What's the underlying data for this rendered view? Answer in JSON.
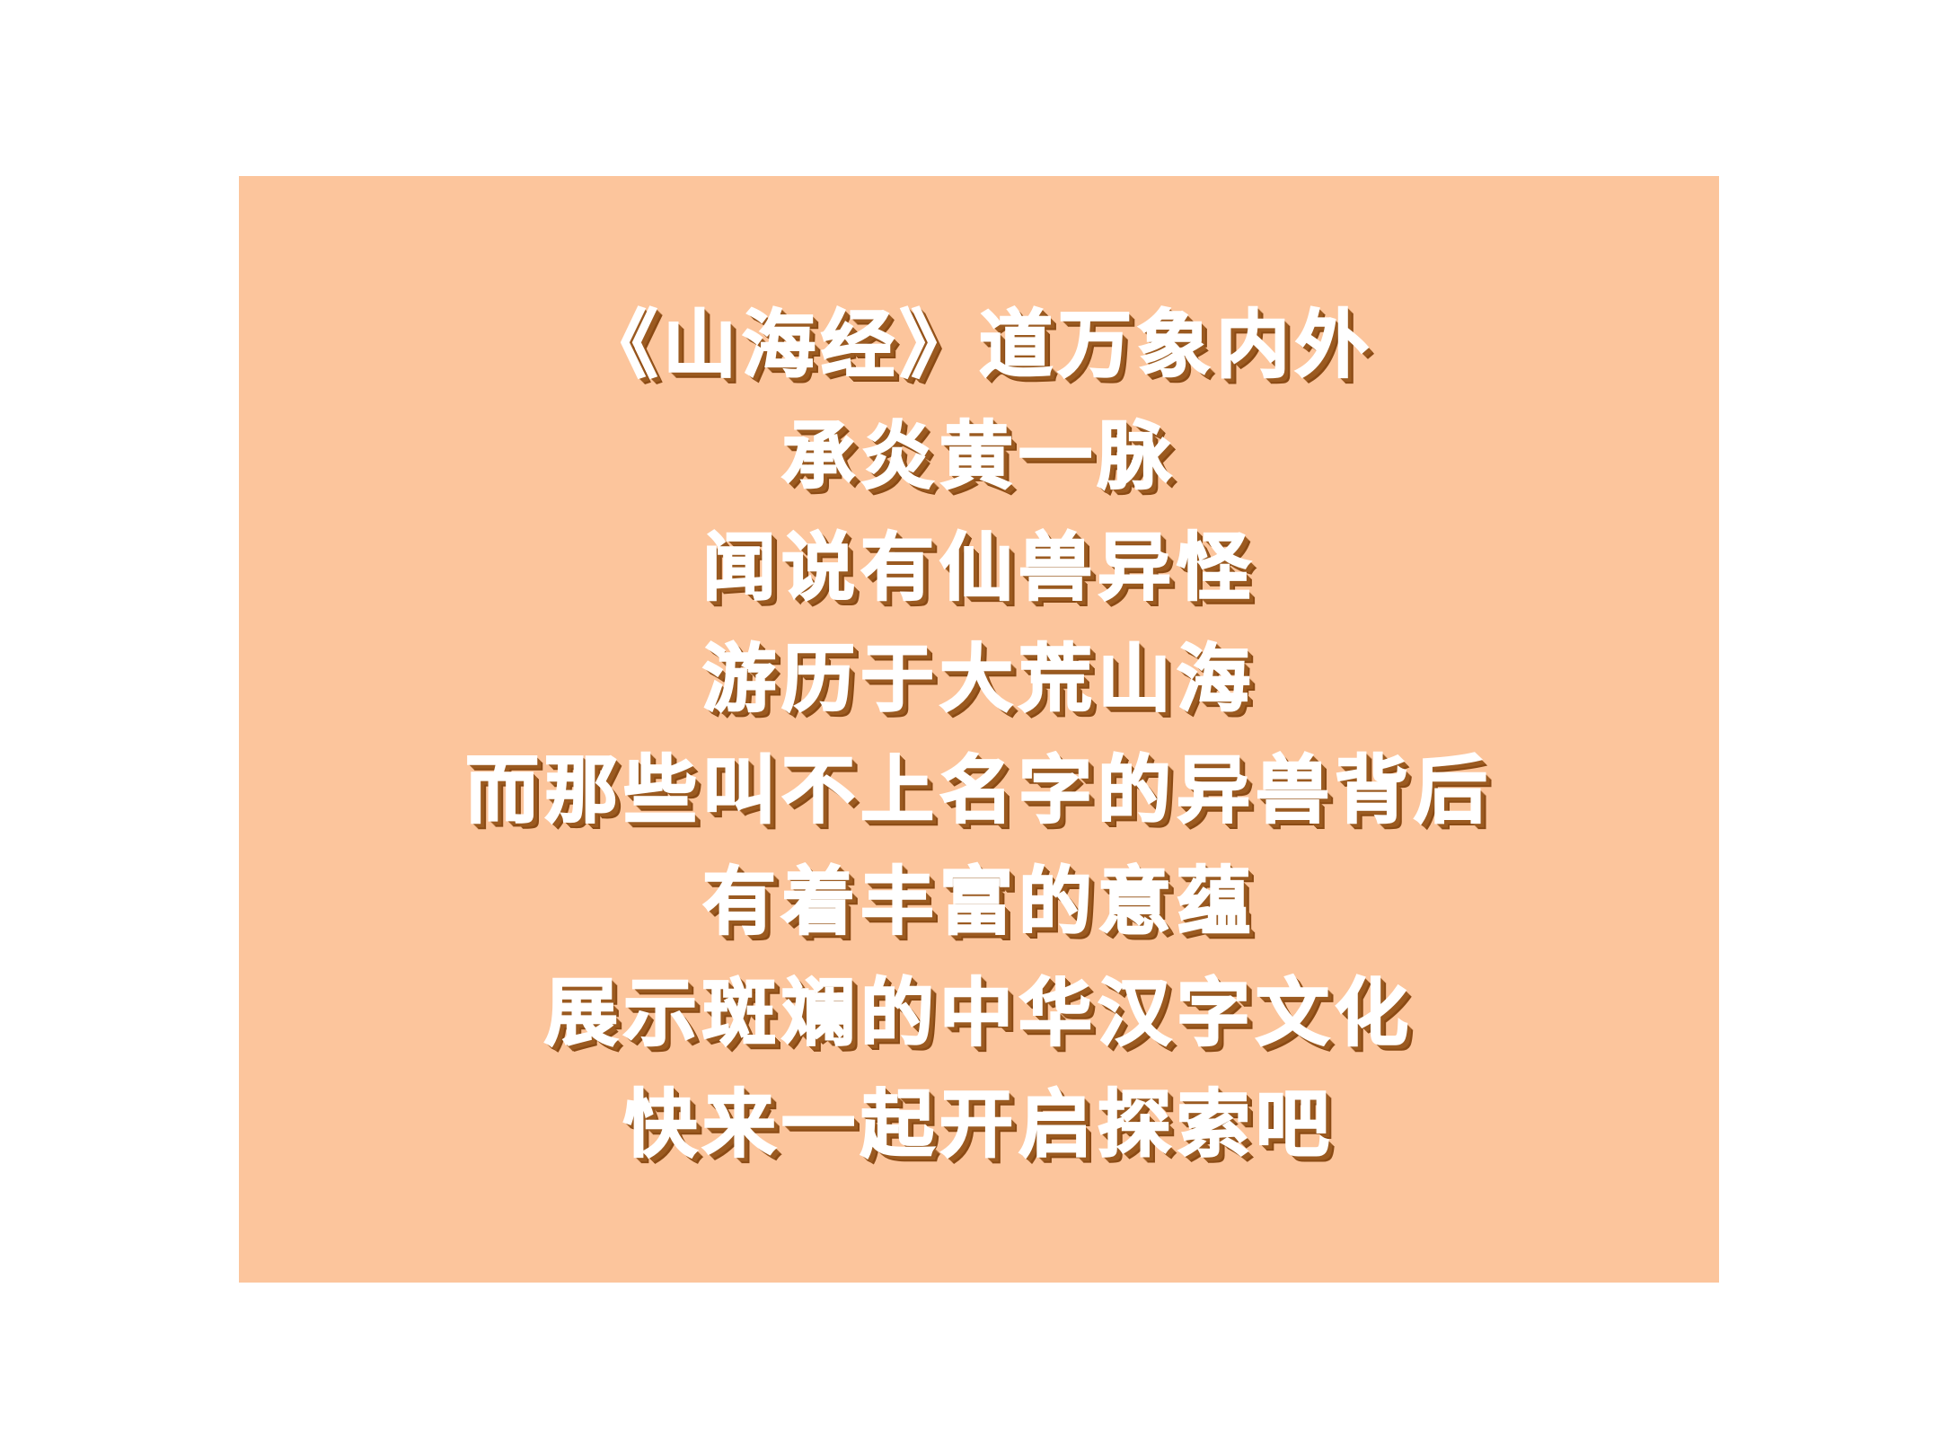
{
  "colors": {
    "page_background": "#ffffff",
    "card_background": "#fcc59c",
    "text": "#ffffff",
    "text_shadow": "#9b5a20"
  },
  "poem": {
    "lines": [
      "《山海经》道万象内外",
      "承炎黄一脉",
      "闻说有仙兽异怪",
      "游历于大荒山海",
      "而那些叫不上名字的异兽背后",
      "有着丰富的意蕴",
      "展示斑斓的中华汉字文化",
      "快来一起开启探索吧"
    ]
  }
}
